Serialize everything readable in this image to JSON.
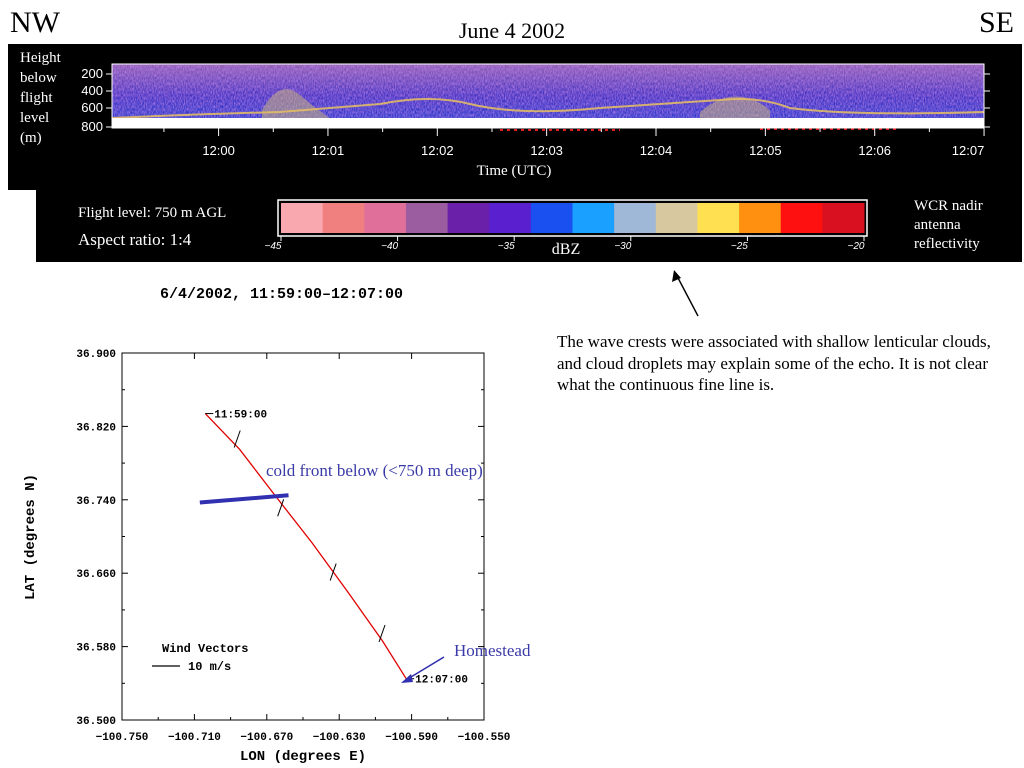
{
  "header": {
    "left_corner": "NW",
    "right_corner": "SE",
    "date": "June 4 2002"
  },
  "radar_panel": {
    "height_label_lines": [
      "Height",
      "below",
      "flight",
      "level",
      "(m)"
    ],
    "height_ticks": [
      "200",
      "400",
      "600",
      "800"
    ],
    "time_ticks": [
      "12:00",
      "12:01",
      "12:02",
      "12:03",
      "12:04",
      "12:05",
      "12:06",
      "12:07"
    ],
    "time_axis_label": "Time (UTC)",
    "flight_level": "Flight level: 750 m AGL",
    "aspect_ratio": "Aspect ratio: 1:4",
    "colorbar": {
      "label": "dBZ",
      "ticks": [
        "−45",
        "−40",
        "−35",
        "−30",
        "−25",
        "−20"
      ],
      "tick_values": [
        -45,
        -40,
        -35,
        -30,
        -25,
        -20
      ],
      "range": [
        -45,
        -20
      ],
      "colors": [
        "#f9a8b0",
        "#f08080",
        "#e0709a",
        "#9c5ca0",
        "#6a20a8",
        "#5a20d0",
        "#1a50f0",
        "#1aa0ff",
        "#a0b8d8",
        "#d8c8a0",
        "#ffe050",
        "#ff9010",
        "#ff1010",
        "#d81020"
      ]
    },
    "wcr_label_lines": [
      "WCR nadir",
      "antenna",
      "reflectivity"
    ]
  },
  "subtitle": "6/4/2002, 11:59:00–12:07:00",
  "annotation": {
    "note": "The wave crests were associated with shallow lenticular clouds, and cloud droplets may explain some of the echo. It is not clear what the continuous fine line is.",
    "cold_front": "cold front below (<750 m deep)",
    "homestead": "Homestead"
  },
  "chart_data": {
    "type": "line",
    "xlabel": "LON (degrees E)",
    "ylabel": "LAT (degrees N)",
    "xlim": [
      -100.75,
      -100.55
    ],
    "ylim": [
      36.5,
      36.9
    ],
    "x_ticks": [
      "−100.750",
      "−100.710",
      "−100.670",
      "−100.630",
      "−100.590",
      "−100.550"
    ],
    "x_tick_values": [
      -100.75,
      -100.71,
      -100.67,
      -100.63,
      -100.59,
      -100.55
    ],
    "y_ticks": [
      "36.900",
      "36.820",
      "36.740",
      "36.660",
      "36.580",
      "36.500"
    ],
    "y_tick_values": [
      36.9,
      36.82,
      36.74,
      36.66,
      36.58,
      36.5
    ],
    "series": [
      {
        "x": [
          -100.704,
          -100.685,
          -100.664,
          -100.645,
          -100.625,
          -100.606,
          -100.593
        ],
        "y": [
          36.834,
          36.795,
          36.741,
          36.693,
          36.639,
          36.586,
          36.545
        ]
      }
    ],
    "start_label": "11:59:00",
    "end_label": "12:07:00",
    "start_point": [
      -100.704,
      36.834
    ],
    "end_point": [
      -100.593,
      36.545
    ],
    "wind_vectors_title": "Wind Vectors",
    "wind_scale_label": "10 m/s",
    "cold_front_line": [
      [
        -100.707,
        36.737
      ],
      [
        -100.658,
        36.745
      ]
    ],
    "wind_vectors_at": [
      [
        -100.688,
        36.797
      ],
      [
        -100.664,
        36.722
      ],
      [
        -100.635,
        36.652
      ],
      [
        -100.608,
        36.585
      ]
    ]
  },
  "colors": {
    "track": "#e00000",
    "annotation_blue": "#3a3aa8",
    "cold_front": "#3030b0"
  }
}
